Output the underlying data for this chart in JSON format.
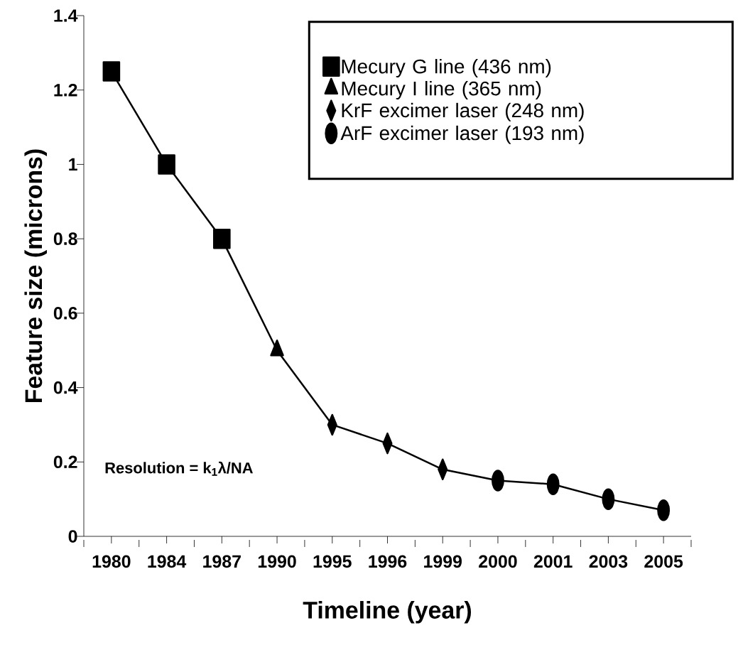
{
  "chart_data": {
    "type": "line",
    "xlabel": "Timeline (year)",
    "ylabel": "Feature size (microns)",
    "categories": [
      "1980",
      "1984",
      "1987",
      "1990",
      "1995",
      "1996",
      "1999",
      "2000",
      "2001",
      "2003",
      "2005"
    ],
    "series": [
      {
        "color": "#000000",
        "marker": "none",
        "values": [
          1.25,
          1.0,
          0.8,
          0.5,
          0.3,
          0.25,
          0.18,
          0.15,
          0.14,
          0.1,
          0.07
        ]
      },
      {
        "name": "Mecury G line (436 nm)",
        "type": "scatter",
        "color": "#000000",
        "marker": "square",
        "values": [
          1.25,
          1.0,
          0.8,
          null,
          null,
          null,
          null,
          null,
          null,
          null,
          null
        ]
      },
      {
        "name": "Mecury I line  (365 nm)",
        "type": "scatter",
        "color": "#000000",
        "marker": "triangle",
        "values": [
          null,
          null,
          null,
          0.5,
          null,
          null,
          null,
          null,
          null,
          null,
          null
        ]
      },
      {
        "name": "KrF  excimer laser   (248 nm)",
        "type": "scatter",
        "color": "#000000",
        "marker": "diamond",
        "values": [
          null,
          null,
          null,
          null,
          0.3,
          0.25,
          0.18,
          null,
          null,
          null,
          null
        ]
      },
      {
        "name": "ArF  excimer laser   (193 nm)",
        "type": "scatter",
        "color": "#000000",
        "marker": "circle",
        "values": [
          null,
          null,
          null,
          null,
          null,
          null,
          null,
          0.15,
          0.14,
          0.1,
          0.07
        ]
      }
    ],
    "ylim": [
      0,
      1.4
    ],
    "yticks": [
      0,
      0.2,
      0.4,
      0.6,
      0.8,
      1,
      1.2,
      1.4
    ],
    "grid": false,
    "legend": "top right",
    "annotations": [
      "Resolution = k$_{1}$λ/NA"
    ]
  }
}
